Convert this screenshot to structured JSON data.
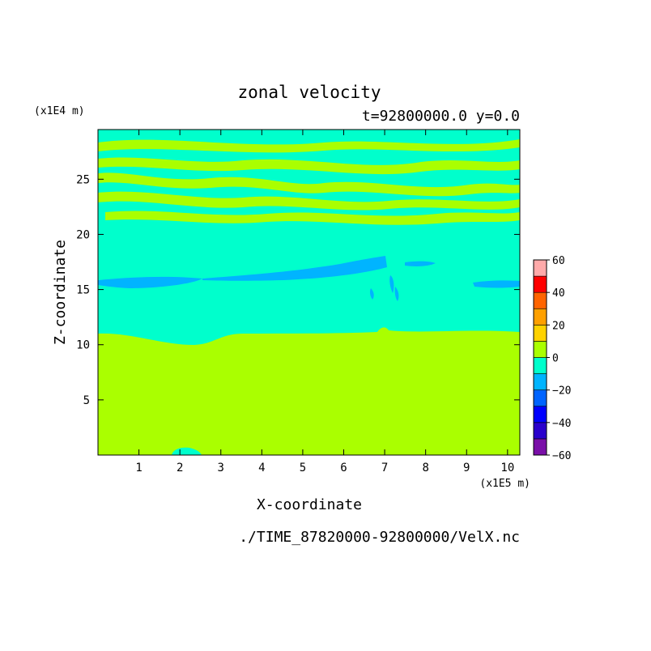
{
  "chart_data": {
    "type": "heatmap",
    "title": "zonal velocity",
    "subtitle": "t=92800000.0 y=0.0",
    "xlabel": "X-coordinate",
    "ylabel": "Z-coordinate",
    "x_unit": "(x1E5 m)",
    "y_unit": "(x1E4 m)",
    "footer": "./TIME_87820000-92800000/VelX.nc",
    "xlim": [
      0,
      10.3
    ],
    "ylim": [
      0,
      29.5
    ],
    "x_ticks": [
      "1",
      "2",
      "3",
      "4",
      "5",
      "6",
      "7",
      "8",
      "9",
      "10"
    ],
    "x_tick_values": [
      1,
      2,
      3,
      4,
      5,
      6,
      7,
      8,
      9,
      10
    ],
    "y_ticks": [
      "5",
      "10",
      "15",
      "20",
      "25"
    ],
    "y_tick_values": [
      5,
      10,
      15,
      20,
      25
    ],
    "colorbar": {
      "tick_labels": [
        "60",
        "40",
        "20",
        "0",
        "−20",
        "−40",
        "−60"
      ],
      "tick_values": [
        60,
        40,
        20,
        0,
        -20,
        -40,
        -60
      ],
      "levels": [
        {
          "from": -60,
          "to": -50,
          "color": "#7a0fa8"
        },
        {
          "from": -50,
          "to": -40,
          "color": "#2a00cc"
        },
        {
          "from": -40,
          "to": -30,
          "color": "#0000ff"
        },
        {
          "from": -30,
          "to": -20,
          "color": "#0064ff"
        },
        {
          "from": -20,
          "to": -10,
          "color": "#00b4ff"
        },
        {
          "from": -10,
          "to": 0,
          "color": "#00ffcc"
        },
        {
          "from": 0,
          "to": 10,
          "color": "#aaff00"
        },
        {
          "from": 10,
          "to": 20,
          "color": "#ffd200"
        },
        {
          "from": 20,
          "to": 30,
          "color": "#ffa000"
        },
        {
          "from": 30,
          "to": 40,
          "color": "#ff6400"
        },
        {
          "from": 40,
          "to": 50,
          "color": "#ff0000"
        },
        {
          "from": 50,
          "to": 60,
          "color": "#ffaaaa"
        }
      ]
    },
    "regions": [
      {
        "name": "lower-layer",
        "value_range": [
          0,
          10
        ],
        "z_range": [
          0,
          11.2
        ]
      },
      {
        "name": "middle-layer",
        "value_range": [
          -10,
          0
        ],
        "z_range": [
          11.2,
          21.5
        ]
      },
      {
        "name": "negative-band",
        "value_range": [
          -20,
          -10
        ],
        "z_range": [
          15.5,
          18
        ]
      },
      {
        "name": "upper-banded-layer",
        "value_range": [
          -10,
          10
        ],
        "z_range": [
          21.5,
          29.5
        ]
      }
    ]
  }
}
